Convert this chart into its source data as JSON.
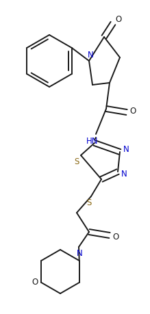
{
  "bg_color": "#ffffff",
  "line_color": "#1a1a1a",
  "n_color": "#0000cd",
  "s_color": "#8b6914",
  "o_color": "#1a1a1a",
  "line_width": 1.4,
  "figsize": [
    2.19,
    4.59
  ],
  "dpi": 100,
  "xlim": [
    0,
    219
  ],
  "ylim": [
    0,
    459
  ]
}
